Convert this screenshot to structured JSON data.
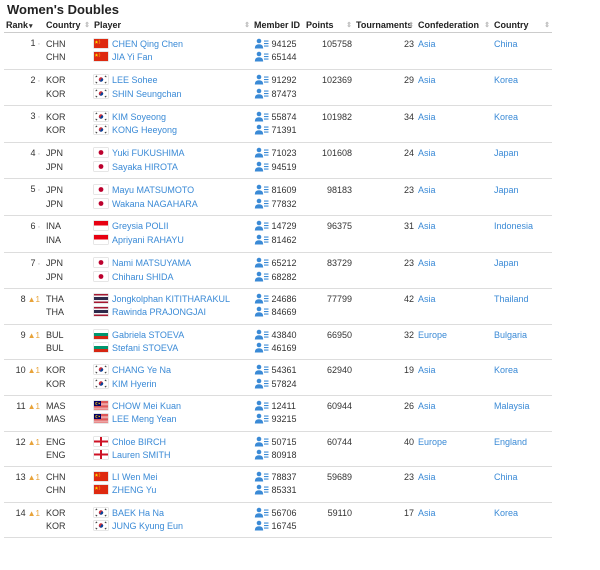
{
  "title": "Women's Doubles",
  "headers": {
    "rank": "Rank",
    "country": "Country",
    "player": "Player",
    "member_id": "Member ID",
    "points": "Points",
    "tournaments": "Tournaments",
    "confederation": "Confederation",
    "country2": "Country"
  },
  "colors": {
    "link": "#3a8ad6",
    "up": "#e8a33a"
  },
  "rows": [
    {
      "rank": "1",
      "change": "",
      "players": [
        {
          "country": "CHN",
          "name": "CHEN Qing Chen",
          "id": "94125"
        },
        {
          "country": "CHN",
          "name": "JIA Yi Fan",
          "id": "65144"
        }
      ],
      "points": "105758",
      "tournaments": "23",
      "confederation": "Asia",
      "country_name": "China",
      "flag": "chn"
    },
    {
      "rank": "2",
      "change": "",
      "players": [
        {
          "country": "KOR",
          "name": "LEE Sohee",
          "id": "91292"
        },
        {
          "country": "KOR",
          "name": "SHIN Seungchan",
          "id": "87473"
        }
      ],
      "points": "102369",
      "tournaments": "29",
      "confederation": "Asia",
      "country_name": "Korea",
      "flag": "kor"
    },
    {
      "rank": "3",
      "change": "",
      "players": [
        {
          "country": "KOR",
          "name": "KIM Soyeong",
          "id": "55874"
        },
        {
          "country": "KOR",
          "name": "KONG Heeyong",
          "id": "71391"
        }
      ],
      "points": "101982",
      "tournaments": "34",
      "confederation": "Asia",
      "country_name": "Korea",
      "flag": "kor"
    },
    {
      "rank": "4",
      "change": "",
      "players": [
        {
          "country": "JPN",
          "name": "Yuki FUKUSHIMA",
          "id": "71023"
        },
        {
          "country": "JPN",
          "name": "Sayaka HIROTA",
          "id": "94519"
        }
      ],
      "points": "101608",
      "tournaments": "24",
      "confederation": "Asia",
      "country_name": "Japan",
      "flag": "jpn"
    },
    {
      "rank": "5",
      "change": "",
      "players": [
        {
          "country": "JPN",
          "name": "Mayu MATSUMOTO",
          "id": "81609"
        },
        {
          "country": "JPN",
          "name": "Wakana NAGAHARA",
          "id": "77832"
        }
      ],
      "points": "98183",
      "tournaments": "23",
      "confederation": "Asia",
      "country_name": "Japan",
      "flag": "jpn"
    },
    {
      "rank": "6",
      "change": "",
      "players": [
        {
          "country": "INA",
          "name": "Greysia POLII",
          "id": "14729"
        },
        {
          "country": "INA",
          "name": "Apriyani RAHAYU",
          "id": "81462"
        }
      ],
      "points": "96375",
      "tournaments": "31",
      "confederation": "Asia",
      "country_name": "Indonesia",
      "flag": "ina"
    },
    {
      "rank": "7",
      "change": "",
      "players": [
        {
          "country": "JPN",
          "name": "Nami MATSUYAMA",
          "id": "65212"
        },
        {
          "country": "JPN",
          "name": "Chiharu SHIDA",
          "id": "68282"
        }
      ],
      "points": "83729",
      "tournaments": "23",
      "confederation": "Asia",
      "country_name": "Japan",
      "flag": "jpn"
    },
    {
      "rank": "8",
      "change": "1",
      "players": [
        {
          "country": "THA",
          "name": "Jongkolphan KITITHARAKUL",
          "id": "24686"
        },
        {
          "country": "THA",
          "name": "Rawinda PRAJONGJAI",
          "id": "84669"
        }
      ],
      "points": "77799",
      "tournaments": "42",
      "confederation": "Asia",
      "country_name": "Thailand",
      "flag": "tha"
    },
    {
      "rank": "9",
      "change": "1",
      "players": [
        {
          "country": "BUL",
          "name": "Gabriela STOEVA",
          "id": "43840"
        },
        {
          "country": "BUL",
          "name": "Stefani STOEVA",
          "id": "46169"
        }
      ],
      "points": "66950",
      "tournaments": "32",
      "confederation": "Europe",
      "country_name": "Bulgaria",
      "flag": "bul"
    },
    {
      "rank": "10",
      "change": "1",
      "players": [
        {
          "country": "KOR",
          "name": "CHANG Ye Na",
          "id": "54361"
        },
        {
          "country": "KOR",
          "name": "KIM Hyerin",
          "id": "57824"
        }
      ],
      "points": "62940",
      "tournaments": "19",
      "confederation": "Asia",
      "country_name": "Korea",
      "flag": "kor"
    },
    {
      "rank": "11",
      "change": "1",
      "players": [
        {
          "country": "MAS",
          "name": "CHOW Mei Kuan",
          "id": "12411"
        },
        {
          "country": "MAS",
          "name": "LEE Meng Yean",
          "id": "93215"
        }
      ],
      "points": "60944",
      "tournaments": "26",
      "confederation": "Asia",
      "country_name": "Malaysia",
      "flag": "mas"
    },
    {
      "rank": "12",
      "change": "1",
      "players": [
        {
          "country": "ENG",
          "name": "Chloe BIRCH",
          "id": "50715"
        },
        {
          "country": "ENG",
          "name": "Lauren SMITH",
          "id": "80918"
        }
      ],
      "points": "60744",
      "tournaments": "40",
      "confederation": "Europe",
      "country_name": "England",
      "flag": "eng"
    },
    {
      "rank": "13",
      "change": "1",
      "players": [
        {
          "country": "CHN",
          "name": "LI Wen Mei",
          "id": "78837"
        },
        {
          "country": "CHN",
          "name": "ZHENG Yu",
          "id": "85331"
        }
      ],
      "points": "59689",
      "tournaments": "23",
      "confederation": "Asia",
      "country_name": "China",
      "flag": "chn"
    },
    {
      "rank": "14",
      "change": "1",
      "players": [
        {
          "country": "KOR",
          "name": "BAEK Ha Na",
          "id": "56706"
        },
        {
          "country": "KOR",
          "name": "JUNG Kyung Eun",
          "id": "16745"
        }
      ],
      "points": "59110",
      "tournaments": "17",
      "confederation": "Asia",
      "country_name": "Korea",
      "flag": "kor"
    }
  ]
}
